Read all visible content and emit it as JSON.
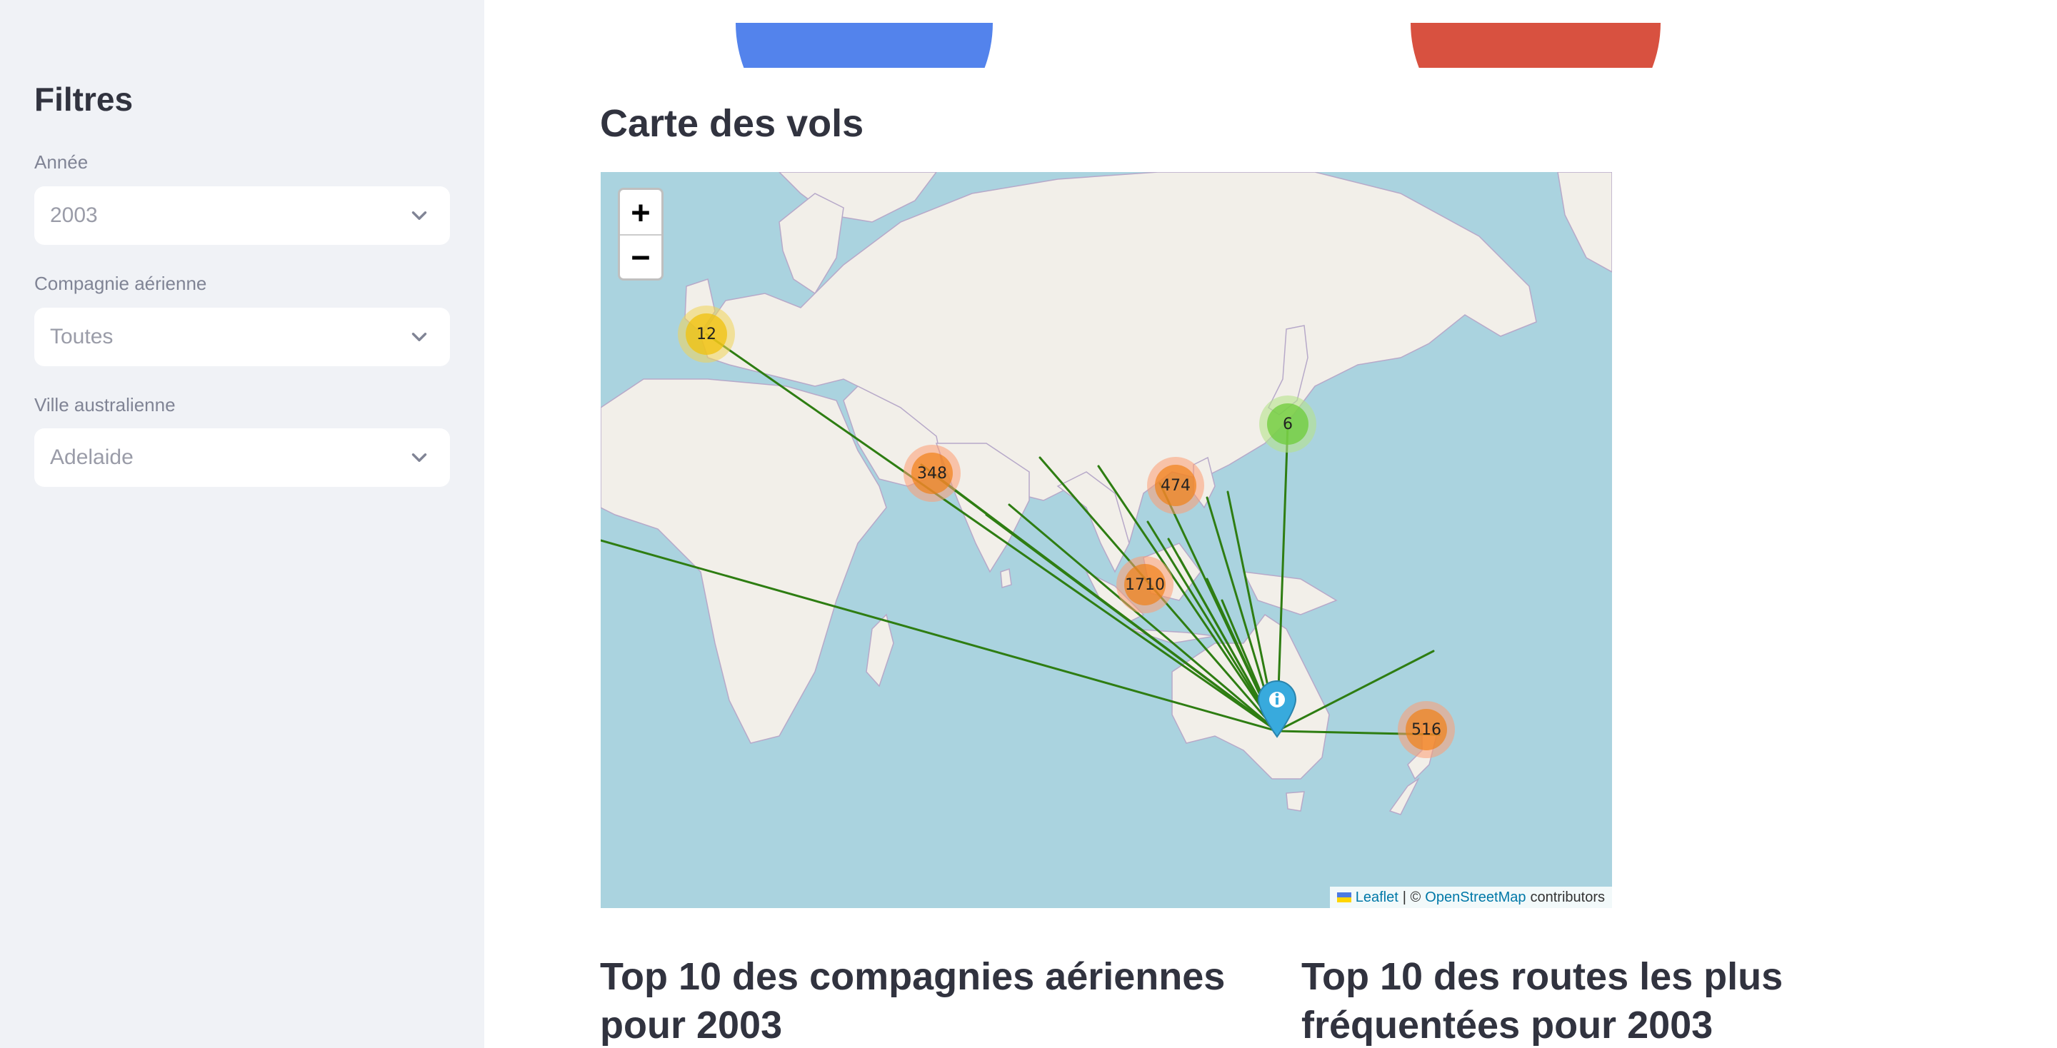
{
  "sidebar": {
    "title": "Filtres",
    "filters": [
      {
        "label": "Année",
        "value": "2003"
      },
      {
        "label": "Compagnie aérienne",
        "value": "Toutes"
      },
      {
        "label": "Ville australienne",
        "value": "Adelaide"
      }
    ]
  },
  "main": {
    "map_title": "Carte des vols",
    "map": {
      "zoom_in": "+",
      "zoom_out": "−",
      "clusters": [
        {
          "count": "12",
          "color": "yellow"
        },
        {
          "count": "6",
          "color": "green"
        },
        {
          "count": "348",
          "color": "orange"
        },
        {
          "count": "474",
          "color": "orange"
        },
        {
          "count": "1710",
          "color": "orange"
        },
        {
          "count": "516",
          "color": "orange"
        }
      ],
      "route_color": "#2e7d12",
      "attribution": {
        "leaflet": "Leaflet",
        "separator": "| ©",
        "osm": "OpenStreetMap",
        "suffix": "contributors"
      }
    },
    "top_airlines_title": "Top 10 des compagnies aériennes pour 2003",
    "top_routes_title": "Top 10 des routes les plus fréquentées pour 2003"
  },
  "colors": {
    "sidebar_bg": "#f0f2f6",
    "pie_blue": "#5383ec",
    "pie_red": "#d85140",
    "sea": "#aad3df",
    "land": "#f2efe9"
  }
}
